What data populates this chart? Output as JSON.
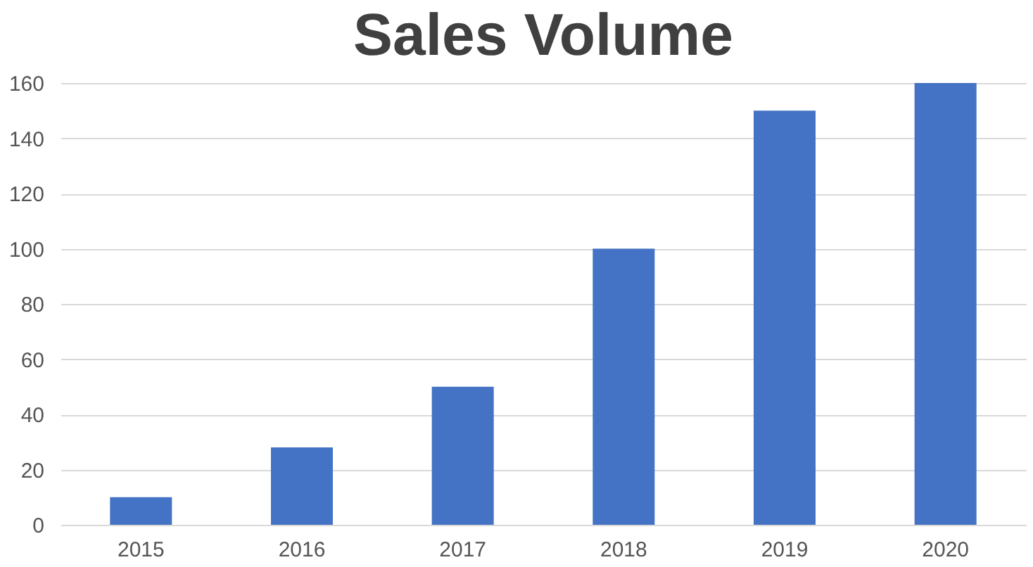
{
  "chart_data": {
    "type": "bar",
    "title": "Sales Volume",
    "categories": [
      "2015",
      "2016",
      "2017",
      "2018",
      "2019",
      "2020"
    ],
    "values": [
      10,
      28,
      50,
      100,
      150,
      160
    ],
    "color": "#4472c4",
    "ylim": [
      0,
      160
    ],
    "yticks": [
      0,
      20,
      40,
      60,
      80,
      100,
      120,
      140,
      160
    ],
    "grid": "y"
  }
}
